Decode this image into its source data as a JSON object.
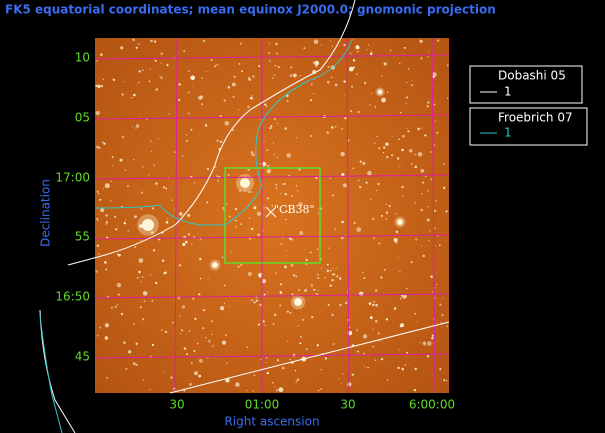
{
  "title": "FK5 equatorial coordinates; mean equinox J2000.0; gnomonic projection",
  "y_labels": [
    "10",
    "05",
    "17:00",
    "55",
    "16:50",
    "45"
  ],
  "x_labels": [
    "30",
    "01:00",
    "30",
    "6:00:00"
  ],
  "x_axis_label": "Right ascension",
  "y_axis_label": "Declination",
  "legend": [
    {
      "name": "Dobashi 05",
      "entry": "1"
    },
    {
      "name": "Froebrich 07",
      "entry": "1"
    }
  ],
  "annotation": "\"CB38\""
}
